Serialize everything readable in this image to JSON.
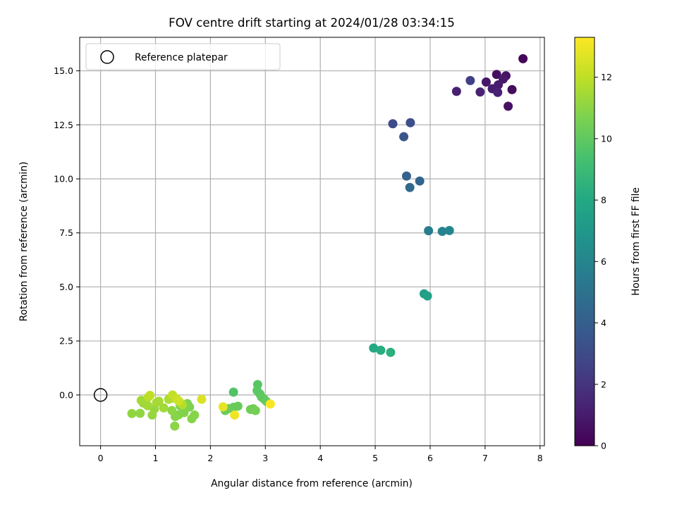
{
  "chart_data": {
    "type": "scatter",
    "title": "FOV centre drift starting at 2024/01/28 03:34:15",
    "xlabel": "Angular distance from reference (arcmin)",
    "ylabel": "Rotation from reference (arcmin)",
    "xlim": [
      -0.38,
      8.08
    ],
    "ylim": [
      -2.35,
      16.55
    ],
    "xticks": [
      0,
      1,
      2,
      3,
      4,
      5,
      6,
      7,
      8
    ],
    "xtick_labels": [
      "0",
      "1",
      "2",
      "3",
      "4",
      "5",
      "6",
      "7",
      "8"
    ],
    "yticks": [
      0.0,
      2.5,
      5.0,
      7.5,
      10.0,
      12.5,
      15.0
    ],
    "ytick_labels": [
      "0.0",
      "2.5",
      "5.0",
      "7.5",
      "10.0",
      "12.5",
      "15.0"
    ],
    "grid": true,
    "legend": {
      "position": "upper-left",
      "entries": [
        "Reference platepar"
      ]
    },
    "reference_point": {
      "x": 0,
      "y": 0,
      "marker": "open-circle"
    },
    "colorbar": {
      "label": "Hours from first FF file",
      "colormap": "viridis",
      "range": [
        0,
        13.3
      ],
      "ticks": [
        0,
        2,
        4,
        6,
        8,
        10,
        12
      ],
      "tick_labels": [
        "0",
        "2",
        "4",
        "6",
        "8",
        "10",
        "12"
      ]
    },
    "points": [
      {
        "x": 7.69,
        "y": 15.56,
        "c": 0.2
      },
      {
        "x": 7.21,
        "y": 14.83,
        "c": 0.5
      },
      {
        "x": 7.38,
        "y": 14.77,
        "c": 0.7
      },
      {
        "x": 7.33,
        "y": 14.62,
        "c": 0.9
      },
      {
        "x": 7.02,
        "y": 14.48,
        "c": 0.8
      },
      {
        "x": 7.24,
        "y": 14.35,
        "c": 1.0
      },
      {
        "x": 7.13,
        "y": 14.17,
        "c": 1.1
      },
      {
        "x": 7.49,
        "y": 14.13,
        "c": 0.4
      },
      {
        "x": 6.48,
        "y": 14.05,
        "c": 1.2
      },
      {
        "x": 6.91,
        "y": 14.02,
        "c": 1.3
      },
      {
        "x": 7.23,
        "y": 14.0,
        "c": 1.2
      },
      {
        "x": 7.42,
        "y": 13.36,
        "c": 0.6
      },
      {
        "x": 6.73,
        "y": 14.55,
        "c": 2.5
      },
      {
        "x": 5.32,
        "y": 12.55,
        "c": 3.0
      },
      {
        "x": 5.64,
        "y": 12.6,
        "c": 3.2
      },
      {
        "x": 5.52,
        "y": 11.95,
        "c": 3.5
      },
      {
        "x": 5.57,
        "y": 10.13,
        "c": 4.1
      },
      {
        "x": 5.81,
        "y": 9.9,
        "c": 4.3
      },
      {
        "x": 5.63,
        "y": 9.6,
        "c": 4.5
      },
      {
        "x": 5.97,
        "y": 7.6,
        "c": 5.6
      },
      {
        "x": 6.22,
        "y": 7.57,
        "c": 5.9
      },
      {
        "x": 6.35,
        "y": 7.61,
        "c": 6.0
      },
      {
        "x": 5.89,
        "y": 4.68,
        "c": 7.4
      },
      {
        "x": 5.95,
        "y": 4.58,
        "c": 7.6
      },
      {
        "x": 4.97,
        "y": 2.17,
        "c": 8.0
      },
      {
        "x": 5.1,
        "y": 2.07,
        "c": 8.2
      },
      {
        "x": 5.28,
        "y": 1.97,
        "c": 8.4
      },
      {
        "x": 2.42,
        "y": 0.13,
        "c": 9.6
      },
      {
        "x": 2.86,
        "y": 0.48,
        "c": 9.8
      },
      {
        "x": 2.85,
        "y": 0.2,
        "c": 9.9
      },
      {
        "x": 2.9,
        "y": 0.05,
        "c": 9.9
      },
      {
        "x": 2.93,
        "y": -0.1,
        "c": 10.0
      },
      {
        "x": 2.98,
        "y": -0.2,
        "c": 10.0
      },
      {
        "x": 3.02,
        "y": -0.3,
        "c": 10.1
      },
      {
        "x": 2.5,
        "y": -0.52,
        "c": 10.2
      },
      {
        "x": 2.42,
        "y": -0.57,
        "c": 10.2
      },
      {
        "x": 2.33,
        "y": -0.63,
        "c": 10.3
      },
      {
        "x": 2.27,
        "y": -0.72,
        "c": 10.3
      },
      {
        "x": 2.73,
        "y": -0.67,
        "c": 10.4
      },
      {
        "x": 2.78,
        "y": -0.64,
        "c": 10.4
      },
      {
        "x": 2.82,
        "y": -0.72,
        "c": 10.5
      },
      {
        "x": 1.45,
        "y": -0.5,
        "c": 10.6
      },
      {
        "x": 1.58,
        "y": -0.4,
        "c": 10.7
      },
      {
        "x": 1.62,
        "y": -0.56,
        "c": 10.7
      },
      {
        "x": 1.52,
        "y": -0.82,
        "c": 10.8
      },
      {
        "x": 1.42,
        "y": -0.92,
        "c": 10.8
      },
      {
        "x": 1.36,
        "y": -1.0,
        "c": 10.9
      },
      {
        "x": 1.71,
        "y": -0.93,
        "c": 10.9
      },
      {
        "x": 1.66,
        "y": -1.1,
        "c": 10.9
      },
      {
        "x": 1.35,
        "y": -1.44,
        "c": 11.0
      },
      {
        "x": 1.3,
        "y": -0.72,
        "c": 11.0
      },
      {
        "x": 0.57,
        "y": -0.86,
        "c": 11.1
      },
      {
        "x": 0.72,
        "y": -0.85,
        "c": 11.1
      },
      {
        "x": 0.94,
        "y": -0.93,
        "c": 11.2
      },
      {
        "x": 0.98,
        "y": -0.65,
        "c": 11.2
      },
      {
        "x": 0.78,
        "y": -0.38,
        "c": 11.3
      },
      {
        "x": 0.83,
        "y": -0.4,
        "c": 11.3
      },
      {
        "x": 0.86,
        "y": -0.5,
        "c": 11.4
      },
      {
        "x": 0.74,
        "y": -0.25,
        "c": 11.4
      },
      {
        "x": 1.15,
        "y": -0.6,
        "c": 11.4
      },
      {
        "x": 1.02,
        "y": -0.35,
        "c": 11.5
      },
      {
        "x": 1.06,
        "y": -0.29,
        "c": 11.5
      },
      {
        "x": 1.24,
        "y": -0.2,
        "c": 11.6
      },
      {
        "x": 1.29,
        "y": -0.15,
        "c": 11.7
      },
      {
        "x": 1.44,
        "y": -0.33,
        "c": 11.8
      },
      {
        "x": 1.49,
        "y": -0.45,
        "c": 11.8
      },
      {
        "x": 0.87,
        "y": -0.1,
        "c": 11.9
      },
      {
        "x": 0.9,
        "y": -0.02,
        "c": 12.0
      },
      {
        "x": 1.31,
        "y": 0.0,
        "c": 12.1
      },
      {
        "x": 1.38,
        "y": -0.17,
        "c": 12.2
      },
      {
        "x": 1.42,
        "y": -0.27,
        "c": 12.3
      },
      {
        "x": 1.84,
        "y": -0.2,
        "c": 12.6
      },
      {
        "x": 2.23,
        "y": -0.55,
        "c": 12.8
      },
      {
        "x": 2.44,
        "y": -0.93,
        "c": 13.0
      },
      {
        "x": 3.09,
        "y": -0.42,
        "c": 13.2
      }
    ]
  }
}
